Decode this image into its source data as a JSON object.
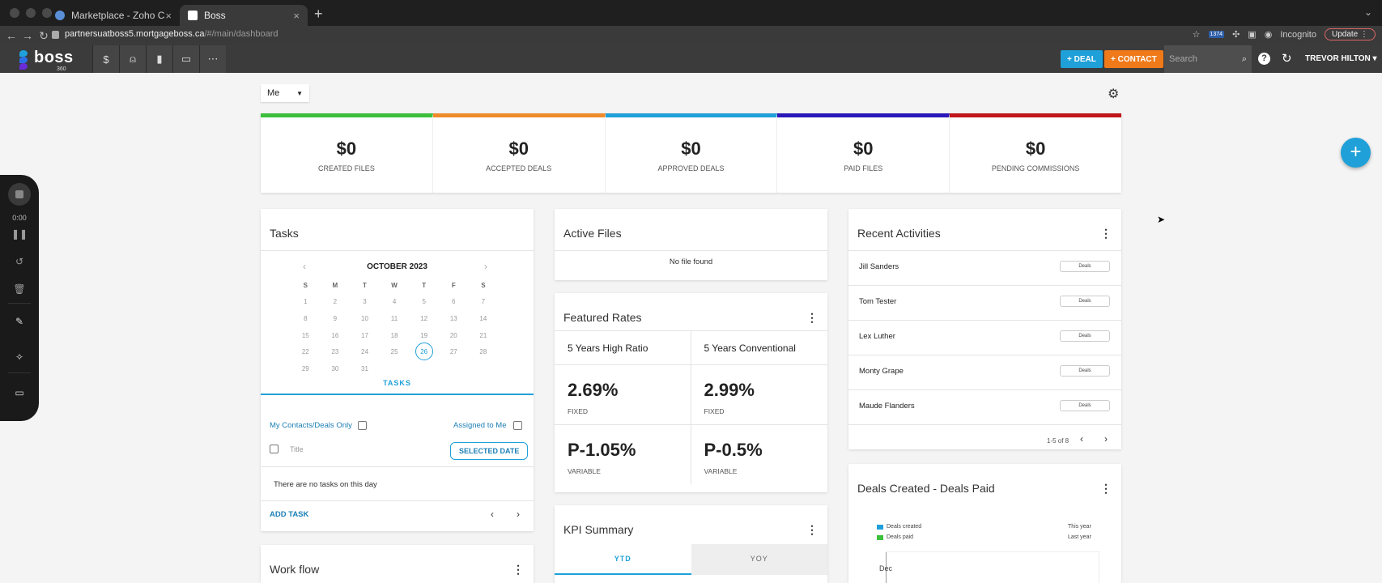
{
  "browser": {
    "tabs": [
      {
        "label": "Marketplace - Zoho CRM",
        "close": "×"
      },
      {
        "label": "Boss",
        "close": "×"
      }
    ],
    "new_tab": "+",
    "url_host": "partnersuatboss5.mortgageboss.ca",
    "url_path": "/#/main/dashboard",
    "extension_badge": "1374",
    "incognito_label": "Incognito",
    "update_label": "Update"
  },
  "app": {
    "logo_text": "boss",
    "logo_sub": "360",
    "deal_button": "+ DEAL",
    "contact_button": "+ CONTACT",
    "search_placeholder": "Search",
    "user_name": "TREVOR HILTON ▾",
    "accent_color": "#1fa0d8",
    "contact_color": "#f07a1a"
  },
  "dashboard": {
    "owner_filter": "Me",
    "stats": [
      {
        "value": "$0",
        "label": "CREATED FILES",
        "color": "#3cbf3c"
      },
      {
        "value": "$0",
        "label": "ACCEPTED DEALS",
        "color": "#ef8a2a"
      },
      {
        "value": "$0",
        "label": "APPROVED DEALS",
        "color": "#1fa0d8"
      },
      {
        "value": "$0",
        "label": "PAID FILES",
        "color": "#2b18b8"
      },
      {
        "value": "$0",
        "label": "PENDING COMMISSIONS",
        "color": "#c0151a"
      }
    ]
  },
  "tasks": {
    "title": "Tasks",
    "month": "OCTOBER 2023",
    "weekdays": [
      "S",
      "M",
      "T",
      "W",
      "T",
      "F",
      "S"
    ],
    "days": [
      "1",
      "2",
      "3",
      "4",
      "5",
      "6",
      "7",
      "8",
      "9",
      "10",
      "11",
      "12",
      "13",
      "14",
      "15",
      "16",
      "17",
      "18",
      "19",
      "20",
      "21",
      "22",
      "23",
      "24",
      "25",
      "26",
      "27",
      "28",
      "29",
      "30",
      "31"
    ],
    "today": "26",
    "tab_label": "TASKS",
    "my_contacts_label": "My Contacts/Deals Only",
    "assigned_label": "Assigned to Me",
    "title_placeholder": "Title",
    "selected_date_label": "SELECTED DATE",
    "empty_message": "There are no tasks on this day",
    "add_task_label": "ADD TASK"
  },
  "active_files": {
    "title": "Active Files",
    "empty_message": "No file found"
  },
  "featured_rates": {
    "title": "Featured Rates",
    "columns": [
      "5 Years High Ratio",
      "5 Years Conventional"
    ],
    "fixed": [
      "2.69%",
      "2.99%"
    ],
    "fixed_label": "FIXED",
    "variable": [
      "P-1.05%",
      "P-0.5%"
    ],
    "variable_label": "VARIABLE"
  },
  "kpi": {
    "title": "KPI Summary",
    "tabs": [
      "YTD",
      "YOY"
    ]
  },
  "recent_activities": {
    "title": "Recent Activities",
    "items": [
      {
        "name": "Jill Sanders",
        "badge": "Deals"
      },
      {
        "name": "Tom Tester",
        "badge": "Deals"
      },
      {
        "name": "Lex Luther",
        "badge": "Deals"
      },
      {
        "name": "Monty Grape",
        "badge": "Deals"
      },
      {
        "name": "Maude Flanders",
        "badge": "Deals"
      }
    ],
    "range": "1-5 of 8"
  },
  "deals_chart": {
    "title": "Deals Created - Deals Paid",
    "legend": [
      {
        "label": "Deals created",
        "color": "#1fa0d8"
      },
      {
        "label": "Deals paid",
        "color": "#3cbf3c"
      }
    ],
    "legend_right": [
      "This year",
      "Last year"
    ],
    "axis_label": "Dec"
  },
  "workflow": {
    "title": "Work flow"
  },
  "recorder": {
    "time": "0:00"
  }
}
